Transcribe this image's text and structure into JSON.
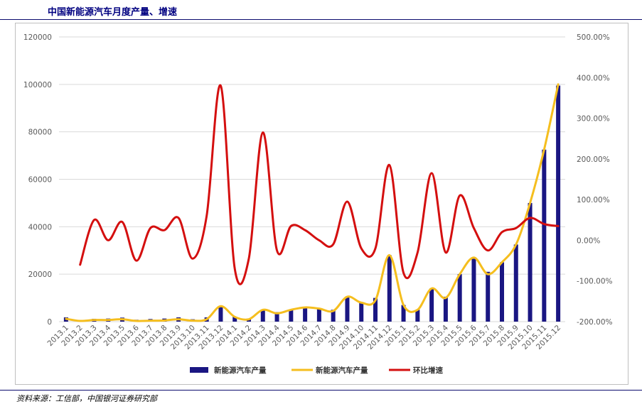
{
  "header": {
    "title": "中国新能源汽车月度产量、增速"
  },
  "footer": {
    "source": "资料来源：工信部，中国银河证券研究部"
  },
  "chart_data": {
    "type": "bar",
    "title": "中国新能源汽车月度产量、增速",
    "categories": [
      "2013.1",
      "2013.2",
      "2013.3",
      "2013.4",
      "2013.5",
      "2013.6",
      "2013.7",
      "2013.8",
      "2013.9",
      "2013.10",
      "2013.11",
      "2013.12",
      "2014.1",
      "2014.2",
      "2014.3",
      "2014.4",
      "2014.5",
      "2014.6",
      "2014.7",
      "2014.8",
      "2014.9",
      "2014.10",
      "2014.11",
      "2014.12",
      "2015.1",
      "2015.2",
      "2015.3",
      "2015.4",
      "2015.5",
      "2015.6",
      "2015.7",
      "2015.8",
      "2015.9",
      "2015.10",
      "2015.11",
      "2015.12"
    ],
    "y_left": {
      "ylim": [
        0,
        120000
      ],
      "ticks": [
        "0",
        "20000",
        "40000",
        "60000",
        "80000",
        "100000",
        "120000"
      ]
    },
    "y_right": {
      "ylim": [
        -200,
        500
      ],
      "ticks": [
        "-200.00%",
        "-100.00%",
        "0.00%",
        "100.00%",
        "200.00%",
        "300.00%",
        "400.00%",
        "500.00%"
      ]
    },
    "series": [
      {
        "name": "新能源汽车产量",
        "type": "bar",
        "axis": "left",
        "color": "#1a1682",
        "values": [
          1800,
          700,
          1200,
          1300,
          1700,
          800,
          1100,
          1300,
          1800,
          1000,
          1800,
          6500,
          2000,
          1300,
          5000,
          4000,
          5000,
          6000,
          5500,
          5000,
          10500,
          8000,
          10000,
          28000,
          7000,
          5000,
          14000,
          10500,
          20000,
          26500,
          21000,
          25000,
          32500,
          50000,
          72500,
          99500
        ]
      },
      {
        "name": "新能源汽车产量",
        "type": "line",
        "axis": "left",
        "color": "#f5be1e",
        "values": [
          1200,
          300,
          700,
          700,
          1000,
          300,
          400,
          500,
          1000,
          400,
          1000,
          6500,
          2000,
          1000,
          5000,
          3500,
          5000,
          6000,
          5500,
          4500,
          10500,
          8000,
          9000,
          28000,
          7000,
          5000,
          14000,
          10000,
          20000,
          27000,
          20000,
          25000,
          32500,
          50000,
          72500,
          100000
        ]
      },
      {
        "name": "环比增速",
        "type": "line",
        "axis": "right",
        "color": "#d40f0f",
        "values": [
          null,
          -60,
          50,
          0,
          45,
          -50,
          30,
          25,
          55,
          -45,
          60,
          380,
          -70,
          -45,
          265,
          -25,
          35,
          25,
          0,
          -10,
          95,
          -20,
          -20,
          185,
          -80,
          -30,
          165,
          -30,
          110,
          30,
          -25,
          20,
          30,
          55,
          40,
          35
        ]
      }
    ],
    "legend": {
      "placement": "bottom",
      "labels": [
        "新能源汽车产量",
        "新能源汽车产量",
        "环比增速"
      ]
    },
    "grid": true
  }
}
